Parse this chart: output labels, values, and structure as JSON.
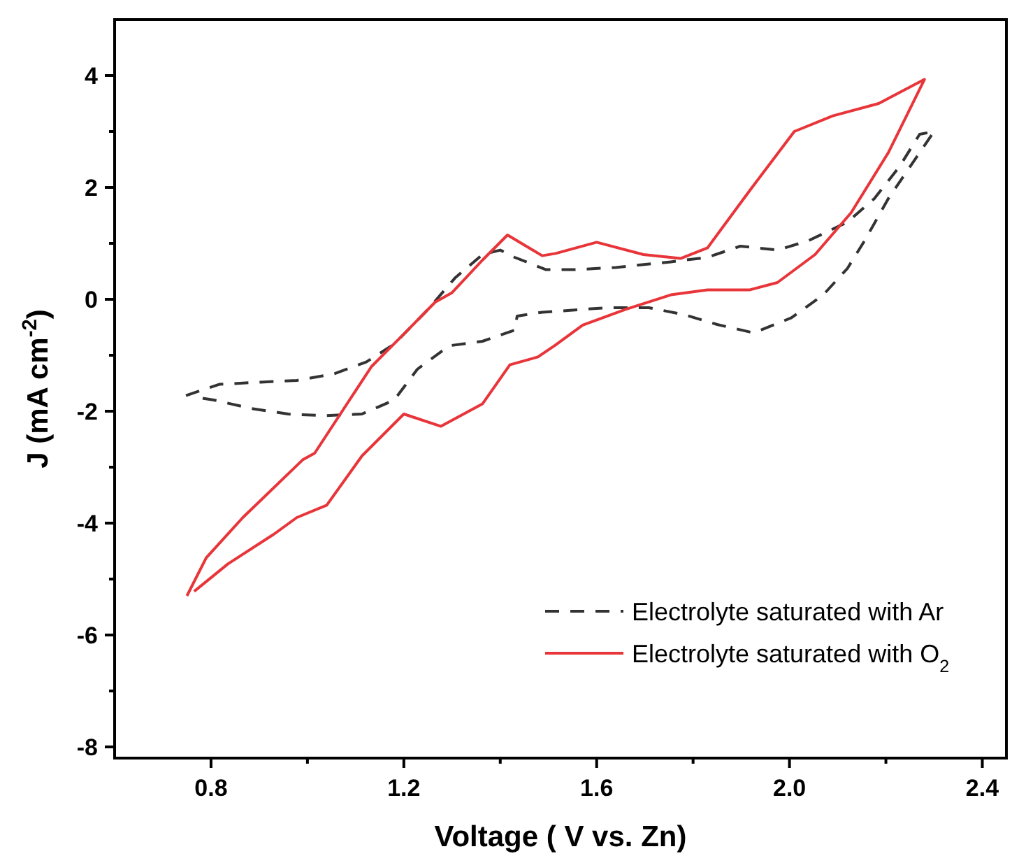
{
  "chart_data": {
    "type": "line",
    "xlabel": "Voltage ( V vs. Zn)",
    "ylabel": "J (mA cm$^{-2}$)",
    "xlim": [
      0.6,
      2.45
    ],
    "ylim": [
      -8.2,
      5
    ],
    "xticks": [
      0.8,
      {
        "value": 1.0,
        "label": null
      },
      1.2,
      {
        "value": 1.4,
        "label": null
      },
      1.6,
      {
        "value": 1.8,
        "label": null
      },
      {
        "value": 2.0,
        "label": "2.0"
      },
      {
        "value": 2.2,
        "label": null
      },
      2.4
    ],
    "yticks": [
      -8,
      {
        "value": -7,
        "label": null
      },
      -6,
      {
        "value": -5,
        "label": null
      },
      -4,
      {
        "value": -3,
        "label": null
      },
      -2,
      {
        "value": -1,
        "label": null
      },
      0,
      {
        "value": 1,
        "label": null
      },
      2,
      {
        "value": 3,
        "label": null
      },
      4
    ],
    "legend": "bottom right",
    "grid": false,
    "series": [
      {
        "name": "Electrolyte saturated with Ar",
        "color": "#333333",
        "line_style": "dashed",
        "x": [
          0.748,
          0.817,
          0.903,
          0.978,
          1.056,
          1.122,
          1.18,
          1.248,
          1.306,
          1.363,
          1.4,
          1.43,
          1.495,
          1.553,
          1.64,
          1.754,
          1.83,
          1.898,
          1.975,
          2.04,
          2.12,
          2.176,
          2.228,
          2.27,
          2.3,
          2.205,
          2.156,
          2.12,
          2.07,
          2.004,
          1.926,
          1.85,
          1.78,
          1.708,
          1.62,
          1.54,
          1.487,
          1.435,
          1.43,
          1.363,
          1.294,
          1.228,
          1.18,
          1.113,
          1.036,
          0.96,
          0.883,
          0.806,
          0.762
        ],
        "values": [
          -1.72,
          -1.52,
          -1.48,
          -1.45,
          -1.33,
          -1.12,
          -0.8,
          -0.2,
          0.38,
          0.8,
          0.88,
          0.75,
          0.53,
          0.53,
          0.57,
          0.67,
          0.75,
          0.95,
          0.88,
          1.05,
          1.38,
          1.8,
          2.37,
          2.95,
          3.0,
          1.8,
          1.05,
          0.55,
          0.08,
          -0.33,
          -0.6,
          -0.45,
          -0.27,
          -0.15,
          -0.15,
          -0.2,
          -0.23,
          -0.3,
          -0.55,
          -0.75,
          -0.83,
          -1.25,
          -1.8,
          -2.05,
          -2.08,
          -2.05,
          -1.95,
          -1.8,
          -1.74
        ]
      },
      {
        "name": "Electrolyte saturated with O$_{2}$",
        "color": "#e8353a",
        "line_style": "solid",
        "x": [
          0.75,
          0.79,
          0.866,
          0.99,
          1.015,
          1.133,
          1.2,
          1.265,
          1.3,
          1.363,
          1.415,
          1.487,
          1.515,
          1.6,
          1.697,
          1.774,
          1.83,
          1.918,
          2.01,
          2.09,
          2.185,
          2.28,
          2.205,
          2.128,
          2.053,
          1.975,
          1.918,
          1.83,
          1.754,
          1.66,
          1.571,
          1.514,
          1.478,
          1.42,
          1.363,
          1.277,
          1.2,
          1.113,
          1.04,
          0.978,
          0.93,
          0.835,
          0.765
        ],
        "values": [
          -5.3,
          -4.62,
          -3.9,
          -2.87,
          -2.75,
          -1.2,
          -0.62,
          -0.05,
          0.12,
          0.7,
          1.15,
          0.78,
          0.82,
          1.02,
          0.8,
          0.73,
          0.92,
          1.95,
          3.0,
          3.28,
          3.5,
          3.93,
          2.62,
          1.55,
          0.8,
          0.3,
          0.17,
          0.17,
          0.08,
          -0.18,
          -0.46,
          -0.82,
          -1.03,
          -1.17,
          -1.87,
          -2.27,
          -2.05,
          -2.8,
          -3.68,
          -3.9,
          -4.2,
          -4.73,
          -5.22
        ]
      }
    ]
  }
}
